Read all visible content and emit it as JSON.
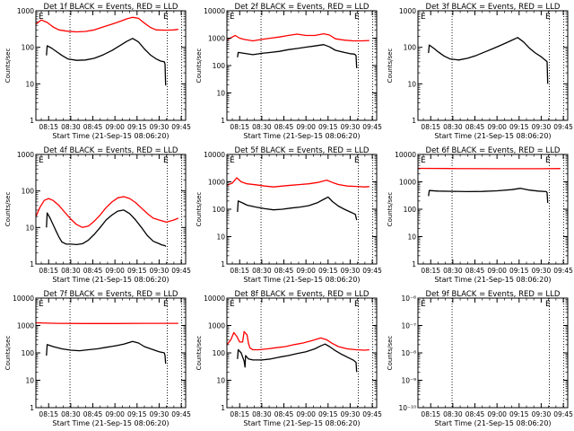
{
  "figure": {
    "xlabel": "Start Time (21-Sep-15 08:06:20)",
    "ylabel": "Counts/sec",
    "x_ticks": [
      "08:15",
      "08:30",
      "08:45",
      "09:00",
      "09:15",
      "09:30",
      "09:45"
    ],
    "x_tick_minutes": [
      15,
      30,
      45,
      60,
      75,
      90,
      105
    ],
    "x_range_minutes": [
      6.33,
      108
    ],
    "dotted_lines_minutes": [
      29.5,
      95.5,
      105.3
    ],
    "marker_text": "E",
    "colors": {
      "events": "#000000",
      "lld": "#ff0000",
      "axes": "#000000"
    }
  },
  "chart_data": [
    {
      "type": "line",
      "title": "Det 1f BLACK = Events, RED = LLD",
      "yscale": "log",
      "ylim": [
        1,
        1000
      ],
      "y_tick_labels": [
        "1",
        "10",
        "100",
        "1000"
      ],
      "marker_minutes": [
        10.0,
        94.6
      ],
      "series": [
        {
          "name": "RED = LLD",
          "color": "#ff0000",
          "x": [
            6.3,
            10,
            14,
            18,
            22,
            28,
            34,
            40,
            46,
            52,
            58,
            64,
            68,
            72,
            76,
            80,
            84,
            88,
            95,
            100,
            103
          ],
          "y": [
            430,
            560,
            480,
            360,
            300,
            275,
            265,
            272,
            300,
            360,
            430,
            520,
            600,
            660,
            620,
            460,
            350,
            300,
            295,
            300,
            310
          ]
        },
        {
          "name": "BLACK = Events",
          "color": "#000000",
          "x": [
            13.5,
            14,
            17,
            20,
            24,
            28,
            34,
            40,
            46,
            52,
            58,
            64,
            68,
            72,
            76,
            80,
            84,
            88,
            91,
            93.5,
            94,
            94.4
          ],
          "y": [
            60,
            110,
            95,
            78,
            60,
            48,
            44,
            45,
            50,
            62,
            82,
            115,
            145,
            175,
            140,
            90,
            62,
            48,
            42,
            40,
            35,
            9
          ]
        }
      ]
    },
    {
      "type": "line",
      "title": "Det 2f BLACK = Events, RED = LLD",
      "yscale": "log",
      "ylim": [
        1,
        10000
      ],
      "y_tick_labels": [
        "1",
        "10",
        "100",
        "1000",
        "10000"
      ],
      "marker_minutes": [
        10.0,
        94.6
      ],
      "series": [
        {
          "name": "RED = LLD",
          "color": "#ff0000",
          "x": [
            6.3,
            10,
            12,
            15,
            18,
            24,
            30,
            36,
            42,
            48,
            54,
            60,
            66,
            72,
            76,
            80,
            86,
            92,
            98,
            103
          ],
          "y": [
            850,
            1100,
            1250,
            1000,
            900,
            800,
            900,
            1000,
            1100,
            1250,
            1400,
            1250,
            1250,
            1450,
            1300,
            950,
            850,
            800,
            800,
            820
          ]
        },
        {
          "name": "BLACK = Events",
          "color": "#000000",
          "x": [
            13.5,
            14,
            18,
            24,
            30,
            36,
            42,
            48,
            54,
            60,
            66,
            72,
            76,
            80,
            86,
            90,
            93,
            94,
            94.4
          ],
          "y": [
            200,
            300,
            280,
            250,
            280,
            300,
            330,
            380,
            420,
            470,
            520,
            580,
            480,
            360,
            300,
            270,
            260,
            230,
            80
          ]
        }
      ]
    },
    {
      "type": "line",
      "title": "Det 3f BLACK = Events, RED = LLD",
      "yscale": "log",
      "ylim": [
        1,
        1000
      ],
      "y_tick_labels": [
        "1",
        "10",
        "100",
        "1000"
      ],
      "marker_minutes": [
        10.0,
        94.6
      ],
      "series": [
        {
          "name": "BLACK = Events",
          "color": "#000000",
          "x": [
            13.5,
            14,
            17,
            20,
            24,
            28,
            34,
            40,
            46,
            52,
            58,
            64,
            70,
            74,
            78,
            82,
            86,
            90,
            93.5,
            94,
            94.4
          ],
          "y": [
            70,
            115,
            95,
            75,
            58,
            48,
            45,
            50,
            60,
            75,
            95,
            120,
            155,
            185,
            140,
            95,
            70,
            55,
            42,
            40,
            10
          ]
        }
      ]
    },
    {
      "type": "line",
      "title": "Det 4f BLACK = Events, RED = LLD",
      "yscale": "log",
      "ylim": [
        1,
        1000
      ],
      "y_tick_labels": [
        "1",
        "10",
        "100",
        "1000"
      ],
      "marker_minutes": [
        10.0,
        94.6
      ],
      "series": [
        {
          "name": "RED = LLD",
          "color": "#ff0000",
          "x": [
            6.3,
            9,
            12,
            15,
            18,
            22,
            26,
            30,
            34,
            38,
            42,
            46,
            50,
            54,
            58,
            62,
            66,
            70,
            74,
            78,
            82,
            86,
            90,
            95,
            100,
            103
          ],
          "y": [
            20,
            35,
            55,
            62,
            55,
            40,
            26,
            17,
            12,
            10,
            11,
            15,
            22,
            35,
            50,
            65,
            70,
            62,
            48,
            34,
            24,
            18,
            16,
            14,
            16,
            18
          ]
        },
        {
          "name": "BLACK = Events",
          "color": "#000000",
          "x": [
            13.5,
            14,
            16,
            18,
            20,
            22,
            24,
            27,
            30,
            34,
            38,
            42,
            46,
            50,
            54,
            58,
            62,
            66,
            70,
            74,
            78,
            82,
            86,
            90,
            92,
            94,
            94.4
          ],
          "y": [
            10,
            25,
            18,
            12,
            8,
            5.5,
            4,
            3.5,
            3.5,
            3.4,
            3.6,
            4.5,
            6.5,
            10,
            16,
            22,
            28,
            30,
            24,
            16,
            10,
            6,
            4.2,
            3.6,
            3.3,
            3.2,
            3
          ]
        }
      ]
    },
    {
      "type": "line",
      "title": "Det 5f BLACK = Events, RED = LLD",
      "yscale": "log",
      "ylim": [
        1,
        10000
      ],
      "y_tick_labels": [
        "1",
        "10",
        "100",
        "1000",
        "10000"
      ],
      "marker_minutes": [
        10.0,
        94.6
      ],
      "series": [
        {
          "name": "RED = LLD",
          "color": "#ff0000",
          "x": [
            6.3,
            10,
            13,
            16,
            20,
            26,
            32,
            38,
            44,
            50,
            56,
            62,
            68,
            74,
            78,
            82,
            88,
            94,
            100,
            103
          ],
          "y": [
            750,
            900,
            1400,
            1000,
            850,
            780,
            700,
            650,
            700,
            750,
            800,
            850,
            950,
            1150,
            950,
            800,
            700,
            680,
            650,
            670
          ]
        },
        {
          "name": "BLACK = Events",
          "color": "#000000",
          "x": [
            13.5,
            14,
            17,
            20,
            26,
            32,
            38,
            44,
            50,
            56,
            62,
            68,
            72,
            75,
            78,
            82,
            86,
            90,
            93.5,
            94.4
          ],
          "y": [
            80,
            200,
            170,
            140,
            120,
            105,
            95,
            100,
            110,
            120,
            135,
            175,
            230,
            280,
            190,
            130,
            100,
            80,
            65,
            40
          ]
        }
      ]
    },
    {
      "type": "line",
      "title": "Det 6f BLACK = Events, RED = LLD",
      "yscale": "log",
      "ylim": [
        1,
        10000
      ],
      "y_tick_labels": [
        "1",
        "10",
        "100",
        "1000",
        "10000"
      ],
      "marker_minutes": [
        10.0,
        94.6
      ],
      "series": [
        {
          "name": "RED = LLD",
          "color": "#ff0000",
          "x": [
            6.3,
            30,
            60,
            90,
            103
          ],
          "y": [
            3100,
            3050,
            3000,
            3000,
            3050
          ]
        },
        {
          "name": "BLACK = Events",
          "color": "#000000",
          "x": [
            13.5,
            14,
            20,
            30,
            40,
            50,
            60,
            70,
            76,
            82,
            88,
            93.5,
            94,
            94.4
          ],
          "y": [
            300,
            480,
            460,
            450,
            440,
            445,
            470,
            520,
            580,
            500,
            460,
            440,
            400,
            170
          ]
        }
      ]
    },
    {
      "type": "line",
      "title": "Det 7f BLACK = Events, RED = LLD",
      "yscale": "log",
      "ylim": [
        1,
        10000
      ],
      "y_tick_labels": [
        "1",
        "10",
        "100",
        "1000",
        "10000"
      ],
      "marker_minutes": [
        10.0,
        94.6
      ],
      "series": [
        {
          "name": "RED = LLD",
          "color": "#ff0000",
          "x": [
            6.3,
            20,
            40,
            60,
            80,
            103
          ],
          "y": [
            1250,
            1200,
            1180,
            1180,
            1200,
            1200
          ]
        },
        {
          "name": "BLACK = Events",
          "color": "#000000",
          "x": [
            13.5,
            14,
            18,
            24,
            30,
            36,
            42,
            48,
            54,
            60,
            66,
            72,
            76,
            80,
            86,
            90,
            93.5,
            94,
            94.4
          ],
          "y": [
            80,
            200,
            170,
            140,
            125,
            120,
            130,
            140,
            160,
            180,
            210,
            260,
            230,
            170,
            130,
            110,
            100,
            80,
            40
          ]
        }
      ]
    },
    {
      "type": "line",
      "title": "Det 8f BLACK = Events, RED = LLD",
      "yscale": "log",
      "ylim": [
        1,
        10000
      ],
      "y_tick_labels": [
        "1",
        "10",
        "100",
        "1000",
        "10000"
      ],
      "marker_minutes": [
        10.0,
        94.6
      ],
      "series": [
        {
          "name": "RED = LLD",
          "color": "#ff0000",
          "x": [
            6.3,
            9,
            11,
            13,
            15,
            17,
            18,
            20,
            21,
            22,
            24,
            28,
            34,
            40,
            46,
            52,
            58,
            64,
            70,
            74,
            78,
            82,
            88,
            94,
            100,
            103
          ],
          "y": [
            200,
            300,
            550,
            400,
            250,
            250,
            600,
            450,
            220,
            150,
            130,
            130,
            140,
            155,
            170,
            200,
            230,
            280,
            350,
            300,
            220,
            170,
            140,
            130,
            125,
            130
          ]
        },
        {
          "name": "BLACK = Events",
          "color": "#000000",
          "x": [
            13.5,
            14,
            16,
            18,
            18.6,
            19,
            21,
            24,
            30,
            36,
            42,
            48,
            54,
            60,
            66,
            70,
            73,
            76,
            80,
            84,
            88,
            92,
            94,
            94.4
          ],
          "y": [
            60,
            130,
            100,
            50,
            30,
            80,
            60,
            55,
            55,
            60,
            70,
            80,
            95,
            110,
            140,
            180,
            210,
            170,
            120,
            90,
            70,
            55,
            45,
            20
          ]
        }
      ]
    },
    {
      "type": "line",
      "title": "Det 9f BLACK = Events, RED = LLD",
      "yscale": "log",
      "ylim": [
        1e-10,
        1e-06
      ],
      "y_tick_labels": [
        "10⁻¹⁰",
        "10⁻⁹",
        "10⁻⁸",
        "10⁻⁷",
        "10⁻⁶"
      ],
      "marker_minutes": [
        10.0,
        94.6
      ],
      "series": []
    }
  ]
}
